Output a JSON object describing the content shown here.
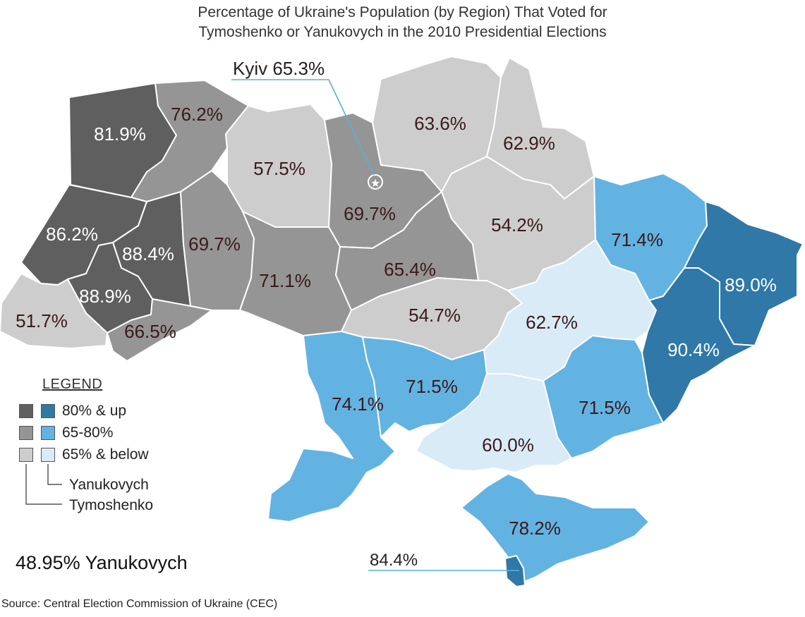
{
  "title": {
    "line1": "Percentage of Ukraine's Population (by Region) That Voted for",
    "line2": "Tymoshenko or Yanukovych in the 2010 Presidential Elections"
  },
  "colors": {
    "tymoshenko_high": "#5f5f5f",
    "tymoshenko_mid": "#959595",
    "tymoshenko_low": "#cdcdcd",
    "yanukovych_high": "#2f78a8",
    "yanukovych_mid": "#62b3e2",
    "yanukovych_low": "#d8ebf7"
  },
  "regions": [
    {
      "name": "Volyn",
      "value": "81.9%",
      "candidate": "Tymoshenko",
      "tier": "high"
    },
    {
      "name": "Rivne",
      "value": "76.2%",
      "candidate": "Tymoshenko",
      "tier": "mid"
    },
    {
      "name": "Zhytomyr",
      "value": "57.5%",
      "candidate": "Tymoshenko",
      "tier": "low"
    },
    {
      "name": "Kyiv Oblast",
      "value": "69.7%",
      "candidate": "Tymoshenko",
      "tier": "mid"
    },
    {
      "name": "Chernihiv",
      "value": "63.6%",
      "candidate": "Tymoshenko",
      "tier": "low"
    },
    {
      "name": "Sumy",
      "value": "62.9%",
      "candidate": "Tymoshenko",
      "tier": "low"
    },
    {
      "name": "Lviv",
      "value": "86.2%",
      "candidate": "Tymoshenko",
      "tier": "high"
    },
    {
      "name": "Ternopil",
      "value": "88.4%",
      "candidate": "Tymoshenko",
      "tier": "high"
    },
    {
      "name": "Khmelnytskyi",
      "value": "69.7%",
      "candidate": "Tymoshenko",
      "tier": "mid"
    },
    {
      "name": "Vinnytsia",
      "value": "71.1%",
      "candidate": "Tymoshenko",
      "tier": "mid"
    },
    {
      "name": "Cherkasy",
      "value": "65.4%",
      "candidate": "Tymoshenko",
      "tier": "mid"
    },
    {
      "name": "Poltava",
      "value": "54.2%",
      "candidate": "Tymoshenko",
      "tier": "low"
    },
    {
      "name": "Kharkiv",
      "value": "71.4%",
      "candidate": "Yanukovych",
      "tier": "mid"
    },
    {
      "name": "Luhansk",
      "value": "89.0%",
      "candidate": "Yanukovych",
      "tier": "high"
    },
    {
      "name": "Zakarpattia",
      "value": "51.7%",
      "candidate": "Tymoshenko",
      "tier": "low"
    },
    {
      "name": "Ivano-Frankivsk",
      "value": "88.9%",
      "candidate": "Tymoshenko",
      "tier": "high"
    },
    {
      "name": "Chernivtsi",
      "value": "66.5%",
      "candidate": "Tymoshenko",
      "tier": "mid"
    },
    {
      "name": "Kirovohrad",
      "value": "54.7%",
      "candidate": "Tymoshenko",
      "tier": "low"
    },
    {
      "name": "Dnipropetrovsk",
      "value": "62.7%",
      "candidate": "Yanukovych",
      "tier": "low"
    },
    {
      "name": "Donetsk",
      "value": "90.4%",
      "candidate": "Yanukovych",
      "tier": "high"
    },
    {
      "name": "Odesa",
      "value": "74.1%",
      "candidate": "Yanukovych",
      "tier": "mid"
    },
    {
      "name": "Mykolaiv",
      "value": "71.5%",
      "candidate": "Yanukovych",
      "tier": "mid"
    },
    {
      "name": "Zaporizhzhia",
      "value": "71.5%",
      "candidate": "Yanukovych",
      "tier": "mid"
    },
    {
      "name": "Kherson",
      "value": "60.0%",
      "candidate": "Yanukovych",
      "tier": "low"
    },
    {
      "name": "Crimea",
      "value": "78.2%",
      "candidate": "Yanukovych",
      "tier": "mid"
    },
    {
      "name": "Sevastopol",
      "value": "84.4%",
      "candidate": "Yanukovych",
      "tier": "high"
    }
  ],
  "callouts": {
    "kyiv": "Kyiv 65.3%",
    "sevastopol": "84.4%"
  },
  "legend": {
    "title": "LEGEND",
    "items": [
      "80% & up",
      "65-80%",
      "65% & below"
    ],
    "yanukovych": "Yanukovych",
    "tymoshenko": "Tymoshenko"
  },
  "summary": "48.95% Yanukovych",
  "source": "Source: Central Election Commission of Ukraine (CEC)"
}
